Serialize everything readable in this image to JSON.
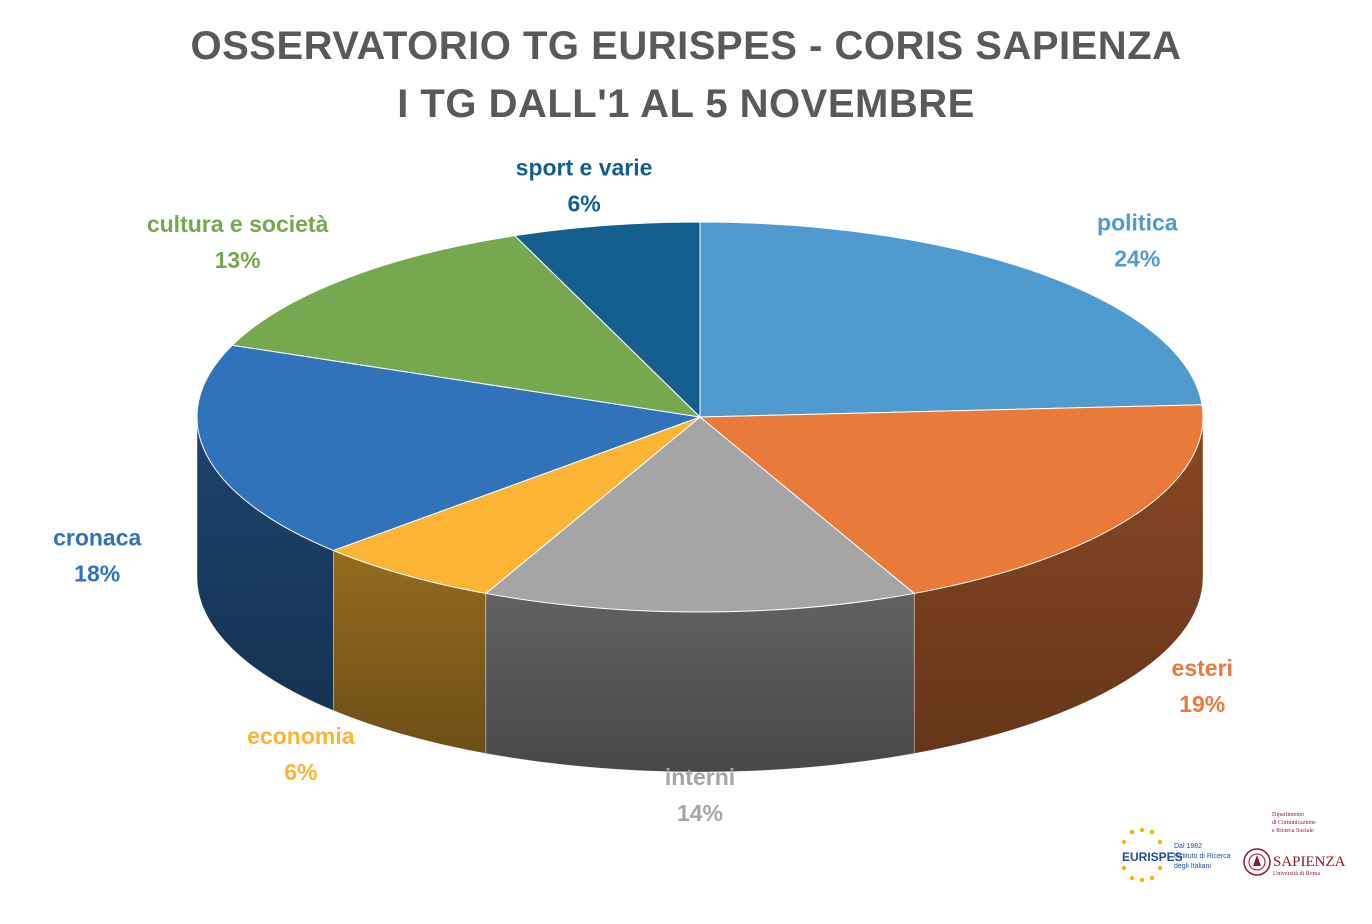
{
  "title_line1": "OSSERVATORIO TG EURISPES - CORIS SAPIENZA",
  "title_line2": "I TG DALL'1 AL 5 NOVEMBRE",
  "chart_data": {
    "type": "pie",
    "title": "OSSERVATORIO TG EURISPES - CORIS SAPIENZA / I TG DALL'1 AL 5 NOVEMBRE",
    "style": "3d",
    "slices": [
      {
        "label": "politica",
        "value": 24,
        "value_label": "24%",
        "color": "#4f9bd0",
        "label_color": "#4f9bd0"
      },
      {
        "label": "esteri",
        "value": 19,
        "value_label": "19%",
        "color": "#ea7a3a",
        "label_color": "#ea7a3a"
      },
      {
        "label": "interni",
        "value": 14,
        "value_label": "14%",
        "color": "#a5a5a5",
        "label_color": "#a5a5a5"
      },
      {
        "label": "economia",
        "value": 6,
        "value_label": "6%",
        "color": "#fbb433",
        "label_color": "#fbb433"
      },
      {
        "label": "cronaca",
        "value": 18,
        "value_label": "18%",
        "color": "#3173bb",
        "label_color": "#3173bb"
      },
      {
        "label": "cultura e società",
        "value": 13,
        "value_label": "13%",
        "color": "#75a84f",
        "label_color": "#75a84f"
      },
      {
        "label": "sport e varie",
        "value": 6,
        "value_label": "6%",
        "color": "#155f8e",
        "label_color": "#155f8e"
      }
    ]
  },
  "logos": {
    "eurispes": {
      "name": "EURISPES",
      "tagline_1": "Dal 1982",
      "tagline_2": "l'Istituto di Ricerca",
      "tagline_3": "degli Italiani"
    },
    "sapienza": {
      "dept_1": "Dipartimento",
      "dept_2": "di Comunicazione",
      "dept_3": "e Ricerca Sociale",
      "name": "SAPIENZA",
      "sub": "Università di Roma"
    }
  }
}
